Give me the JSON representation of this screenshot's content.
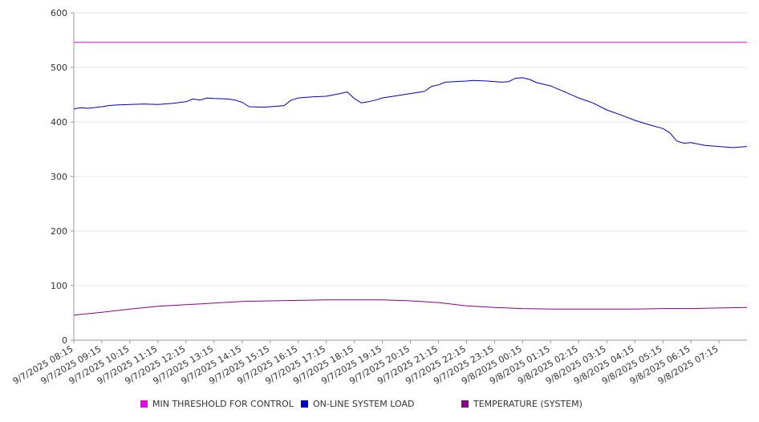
{
  "chart_data": {
    "type": "line",
    "ylim": [
      0,
      600
    ],
    "yticks": [
      0,
      100,
      200,
      300,
      400,
      500,
      600
    ],
    "grid": "horizontal",
    "legend_position": "bottom",
    "x_tick_labels": [
      "9/7/2025 08:15",
      "9/7/2025 09:15",
      "9/7/2025 10:15",
      "9/7/2025 11:15",
      "9/7/2025 12:15",
      "9/7/2025 13:15",
      "9/7/2025 14:15",
      "9/7/2025 15:15",
      "9/7/2025 16:15",
      "9/7/2025 17:15",
      "9/7/2025 18:15",
      "9/7/2025 19:15",
      "9/7/2025 20:15",
      "9/7/2025 21:15",
      "9/7/2025 22:15",
      "9/7/2025 23:15",
      "9/8/2025 00:15",
      "9/8/2025 01:15",
      "9/8/2025 02:15",
      "9/8/2025 03:15",
      "9/8/2025 04:15",
      "9/8/2025 05:15",
      "9/8/2025 06:15",
      "9/8/2025 07:15"
    ],
    "x_range": [
      "9/7/2025 08:15",
      "9/8/2025 08:15"
    ],
    "series": [
      {
        "name": "MIN THRESHOLD FOR CONTROL",
        "color": "#ee00ee",
        "points": [
          [
            "9/7/2025 08:15",
            546
          ],
          [
            "9/8/2025 08:15",
            546
          ]
        ]
      },
      {
        "name": "ON-LINE SYSTEM LOAD",
        "color": "#0000cc",
        "points": [
          [
            "9/7/2025 08:15",
            424
          ],
          [
            "9/7/2025 08:30",
            426
          ],
          [
            "9/7/2025 08:45",
            425
          ],
          [
            "9/7/2025 09:15",
            428
          ],
          [
            "9/7/2025 09:30",
            430
          ],
          [
            "9/7/2025 09:45",
            431
          ],
          [
            "9/7/2025 10:15",
            432
          ],
          [
            "9/7/2025 10:45",
            433
          ],
          [
            "9/7/2025 11:15",
            432
          ],
          [
            "9/7/2025 11:45",
            434
          ],
          [
            "9/7/2025 12:15",
            437
          ],
          [
            "9/7/2025 12:30",
            442
          ],
          [
            "9/7/2025 12:45",
            440
          ],
          [
            "9/7/2025 13:00",
            444
          ],
          [
            "9/7/2025 13:15",
            443
          ],
          [
            "9/7/2025 13:45",
            442
          ],
          [
            "9/7/2025 14:00",
            440
          ],
          [
            "9/7/2025 14:15",
            436
          ],
          [
            "9/7/2025 14:30",
            428
          ],
          [
            "9/7/2025 15:00",
            427
          ],
          [
            "9/7/2025 15:15",
            428
          ],
          [
            "9/7/2025 15:45",
            430
          ],
          [
            "9/7/2025 16:00",
            440
          ],
          [
            "9/7/2025 16:15",
            444
          ],
          [
            "9/7/2025 16:45",
            446
          ],
          [
            "9/7/2025 17:15",
            447
          ],
          [
            "9/7/2025 17:45",
            452
          ],
          [
            "9/7/2025 18:00",
            455
          ],
          [
            "9/7/2025 18:15",
            443
          ],
          [
            "9/7/2025 18:30",
            435
          ],
          [
            "9/7/2025 18:45",
            437
          ],
          [
            "9/7/2025 19:00",
            440
          ],
          [
            "9/7/2025 19:15",
            444
          ],
          [
            "9/7/2025 19:45",
            448
          ],
          [
            "9/7/2025 20:15",
            452
          ],
          [
            "9/7/2025 20:45",
            456
          ],
          [
            "9/7/2025 21:00",
            465
          ],
          [
            "9/7/2025 21:15",
            468
          ],
          [
            "9/7/2025 21:30",
            473
          ],
          [
            "9/7/2025 22:15",
            475
          ],
          [
            "9/7/2025 22:30",
            476
          ],
          [
            "9/7/2025 23:00",
            475
          ],
          [
            "9/7/2025 23:30",
            473
          ],
          [
            "9/7/2025 23:45",
            474
          ],
          [
            "9/8/2025 00:00",
            480
          ],
          [
            "9/8/2025 00:15",
            481
          ],
          [
            "9/8/2025 00:30",
            478
          ],
          [
            "9/8/2025 00:45",
            472
          ],
          [
            "9/8/2025 01:15",
            466
          ],
          [
            "9/8/2025 01:45",
            455
          ],
          [
            "9/8/2025 02:15",
            444
          ],
          [
            "9/8/2025 02:45",
            435
          ],
          [
            "9/8/2025 03:15",
            422
          ],
          [
            "9/8/2025 03:45",
            413
          ],
          [
            "9/8/2025 04:15",
            403
          ],
          [
            "9/8/2025 04:45",
            395
          ],
          [
            "9/8/2025 05:15",
            388
          ],
          [
            "9/8/2025 05:30",
            380
          ],
          [
            "9/8/2025 05:45",
            365
          ],
          [
            "9/8/2025 06:00",
            361
          ],
          [
            "9/8/2025 06:15",
            362
          ],
          [
            "9/8/2025 06:45",
            357
          ],
          [
            "9/8/2025 07:15",
            355
          ],
          [
            "9/8/2025 07:45",
            353
          ],
          [
            "9/8/2025 08:15",
            355
          ]
        ]
      },
      {
        "name": "TEMPERATURE (SYSTEM)",
        "color": "#880088",
        "points": [
          [
            "9/7/2025 08:15",
            46
          ],
          [
            "9/7/2025 09:15",
            51
          ],
          [
            "9/7/2025 10:15",
            57
          ],
          [
            "9/7/2025 11:15",
            62
          ],
          [
            "9/7/2025 12:15",
            65
          ],
          [
            "9/7/2025 13:15",
            68
          ],
          [
            "9/7/2025 14:15",
            71
          ],
          [
            "9/7/2025 15:15",
            72
          ],
          [
            "9/7/2025 16:15",
            73
          ],
          [
            "9/7/2025 17:15",
            74
          ],
          [
            "9/7/2025 18:15",
            74
          ],
          [
            "9/7/2025 19:15",
            74
          ],
          [
            "9/7/2025 20:15",
            72
          ],
          [
            "9/7/2025 21:15",
            69
          ],
          [
            "9/7/2025 22:15",
            63
          ],
          [
            "9/7/2025 23:15",
            60
          ],
          [
            "9/8/2025 00:15",
            58
          ],
          [
            "9/8/2025 01:15",
            57
          ],
          [
            "9/8/2025 02:15",
            57
          ],
          [
            "9/8/2025 03:15",
            57
          ],
          [
            "9/8/2025 04:15",
            57
          ],
          [
            "9/8/2025 05:15",
            58
          ],
          [
            "9/8/2025 06:15",
            58
          ],
          [
            "9/8/2025 07:15",
            59
          ],
          [
            "9/8/2025 08:15",
            60
          ]
        ]
      }
    ]
  }
}
